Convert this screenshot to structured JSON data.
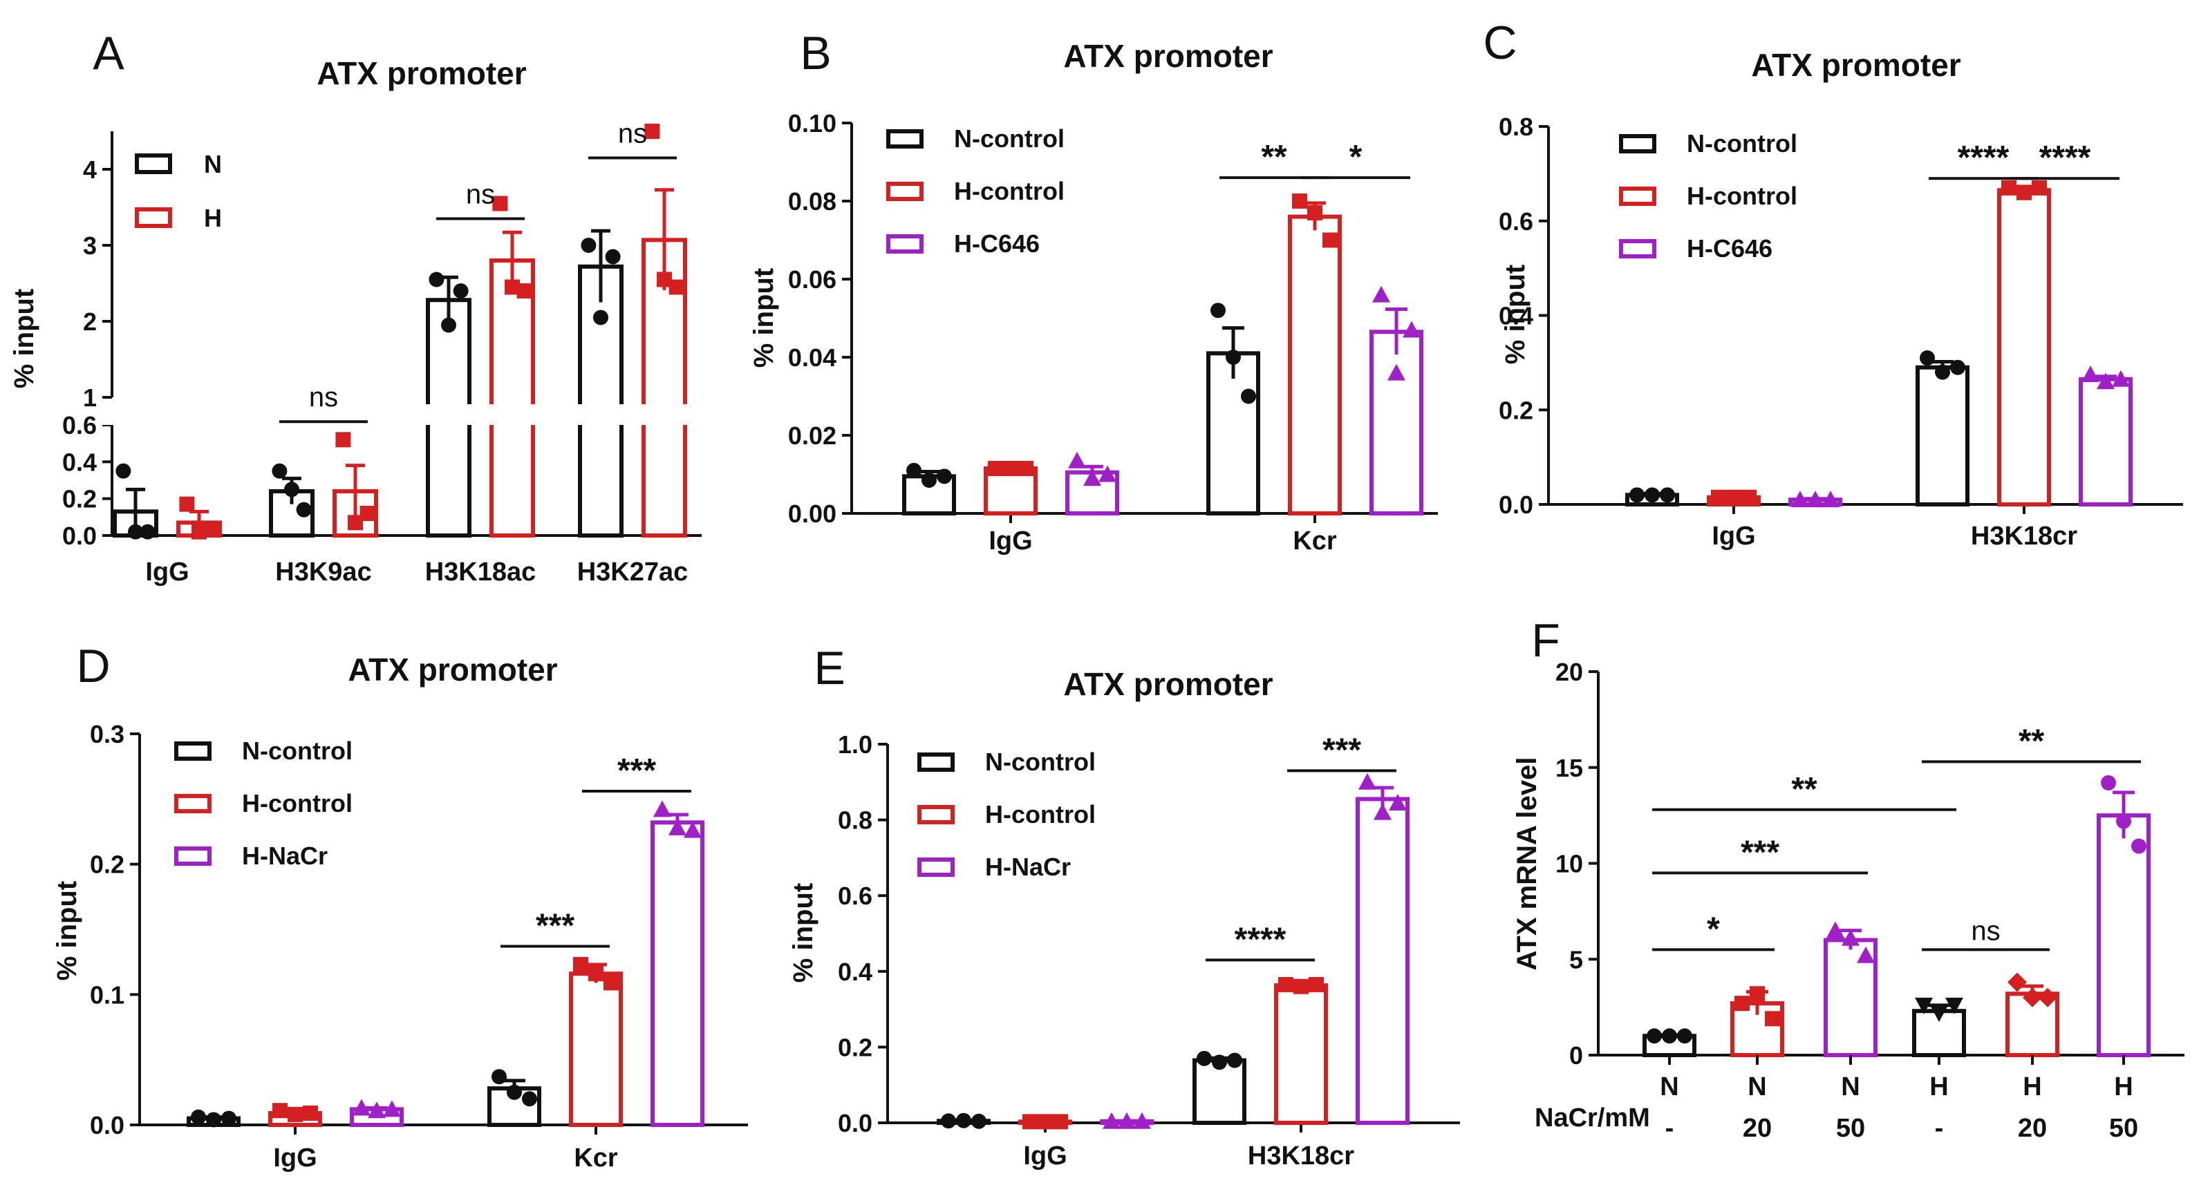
{
  "colors": {
    "N": "#111111",
    "H": "#d42020",
    "purple": "#a020c8"
  },
  "chart_data": [
    {
      "id": "A",
      "panel_label": "A",
      "type": "bar",
      "title": "ATX promoter",
      "ylabel": "% input",
      "y_break": true,
      "ylim_lower": [
        0,
        0.6
      ],
      "ylim_upper": [
        1,
        4.5
      ],
      "yticks_lower": [
        "0.0",
        "0.2",
        "0.4",
        "0.6"
      ],
      "yticks_upper": [
        "1",
        "2",
        "3",
        "4"
      ],
      "categories": [
        "IgG",
        "H3K9ac",
        "H3K18ac",
        "H3K27ac"
      ],
      "series": [
        {
          "name": "N",
          "color_key": "N",
          "marker": "circle",
          "values": [
            0.13,
            0.24,
            2.28,
            2.72
          ],
          "errors": [
            0.12,
            0.07,
            0.3,
            0.47
          ],
          "points": [
            [
              0.35,
              0.02,
              0.02
            ],
            [
              0.35,
              0.25,
              0.14
            ],
            [
              2.55,
              1.95,
              2.4
            ],
            [
              3.0,
              2.05,
              2.85
            ]
          ]
        },
        {
          "name": "H",
          "color_key": "H",
          "marker": "square",
          "values": [
            0.07,
            0.24,
            2.8,
            3.07
          ],
          "errors": [
            0.06,
            0.14,
            0.37,
            0.66
          ],
          "points": [
            [
              0.17,
              0.02,
              0.03
            ],
            [
              0.52,
              0.07,
              0.12
            ],
            [
              3.55,
              2.45,
              2.4
            ],
            [
              4.5,
              2.55,
              2.45
            ]
          ]
        }
      ],
      "legend": [
        {
          "label": "N",
          "color_key": "N"
        },
        {
          "label": "H",
          "color_key": "H"
        }
      ],
      "annotations": [
        {
          "text": "ns",
          "cat": 1,
          "from": 0,
          "to": 1,
          "y": 0.68,
          "style": "ns"
        },
        {
          "text": "ns",
          "cat": 2,
          "from": 0,
          "to": 1,
          "y": 3.35,
          "style": "ns"
        },
        {
          "text": "ns",
          "cat": 3,
          "from": 0,
          "to": 1,
          "y": 4.15,
          "style": "ns"
        }
      ]
    },
    {
      "id": "B",
      "panel_label": "B",
      "type": "bar",
      "title": "ATX promoter",
      "ylabel": "% input",
      "ylim": [
        0,
        0.1
      ],
      "yticks": [
        0,
        0.02,
        0.04,
        0.06,
        0.08,
        0.1
      ],
      "ytick_labels": [
        "0.00",
        "0.02",
        "0.04",
        "0.06",
        "0.08",
        "0.10"
      ],
      "categories": [
        "IgG",
        "Kcr"
      ],
      "series": [
        {
          "name": "N-control",
          "color_key": "N",
          "marker": "circle",
          "values": [
            0.0095,
            0.041
          ],
          "errors": [
            0.0012,
            0.0065
          ],
          "points": [
            [
              0.011,
              0.0085,
              0.0095
            ],
            [
              0.052,
              0.04,
              0.03
            ]
          ]
        },
        {
          "name": "H-control",
          "color_key": "H",
          "marker": "square",
          "values": [
            0.0115,
            0.076
          ],
          "errors": [
            0.0005,
            0.0035
          ],
          "points": [
            [
              0.0115,
              0.0115,
              0.0115
            ],
            [
              0.08,
              0.077,
              0.07
            ]
          ]
        },
        {
          "name": "H-C646",
          "color_key": "purple",
          "marker": "triangle",
          "values": [
            0.0105,
            0.0465
          ],
          "errors": [
            0.0015,
            0.0058
          ],
          "points": [
            [
              0.0135,
              0.009,
              0.01
            ],
            [
              0.056,
              0.036,
              0.047
            ]
          ]
        }
      ],
      "legend": [
        {
          "label": "N-control",
          "color_key": "N"
        },
        {
          "label": "H-control",
          "color_key": "H"
        },
        {
          "label": "H-C646",
          "color_key": "purple"
        }
      ],
      "annotations": [
        {
          "text": "**",
          "cat": 1,
          "from": 0,
          "to": 1,
          "y": 0.086,
          "style": "sig"
        },
        {
          "text": "*",
          "cat": 1,
          "from": 1,
          "to": 2,
          "y": 0.086,
          "style": "sig"
        }
      ]
    },
    {
      "id": "C",
      "panel_label": "C",
      "type": "bar",
      "title": "ATX promoter",
      "ylabel": "% input",
      "ylim": [
        0,
        0.8
      ],
      "yticks": [
        0,
        0.2,
        0.4,
        0.6,
        0.8
      ],
      "ytick_labels": [
        "0.0",
        "0.2",
        "0.4",
        "0.6",
        "0.8"
      ],
      "categories": [
        "IgG",
        "H3K18cr"
      ],
      "series": [
        {
          "name": "N-control",
          "color_key": "N",
          "marker": "circle",
          "values": [
            0.02,
            0.29
          ],
          "errors": [
            0.003,
            0.012
          ],
          "points": [
            [
              0.02,
              0.02,
              0.02
            ],
            [
              0.31,
              0.28,
              0.29
            ]
          ]
        },
        {
          "name": "H-control",
          "color_key": "H",
          "marker": "square",
          "values": [
            0.015,
            0.665
          ],
          "errors": [
            0.002,
            0.008
          ],
          "points": [
            [
              0.015,
              0.015,
              0.015
            ],
            [
              0.67,
              0.66,
              0.67
            ]
          ]
        },
        {
          "name": "H-C646",
          "color_key": "purple",
          "marker": "triangle",
          "values": [
            0.01,
            0.265
          ],
          "errors": [
            0.002,
            0.006
          ],
          "points": [
            [
              0.01,
              0.01,
              0.01
            ],
            [
              0.275,
              0.26,
              0.265
            ]
          ]
        }
      ],
      "legend": [
        {
          "label": "N-control",
          "color_key": "N"
        },
        {
          "label": "H-control",
          "color_key": "H"
        },
        {
          "label": "H-C646",
          "color_key": "purple"
        }
      ],
      "annotations": [
        {
          "text": "****",
          "cat": 1,
          "from": 0,
          "to": 1,
          "y": 0.69,
          "style": "sig"
        },
        {
          "text": "****",
          "cat": 1,
          "from": 1,
          "to": 2,
          "y": 0.69,
          "style": "sig"
        }
      ]
    },
    {
      "id": "D",
      "panel_label": "D",
      "type": "bar",
      "title": "ATX promoter",
      "ylabel": "% input",
      "ylim": [
        0,
        0.3
      ],
      "yticks": [
        0,
        0.1,
        0.2,
        0.3
      ],
      "ytick_labels": [
        "0.0",
        "0.1",
        "0.2",
        "0.3"
      ],
      "categories": [
        "IgG",
        "Kcr"
      ],
      "series": [
        {
          "name": "N-control",
          "color_key": "N",
          "marker": "circle",
          "values": [
            0.005,
            0.028
          ],
          "errors": [
            0.001,
            0.006
          ],
          "points": [
            [
              0.006,
              0.004,
              0.005
            ],
            [
              0.037,
              0.025,
              0.02
            ]
          ]
        },
        {
          "name": "H-control",
          "color_key": "H",
          "marker": "square",
          "values": [
            0.009,
            0.116
          ],
          "errors": [
            0.002,
            0.007
          ],
          "points": [
            [
              0.011,
              0.008,
              0.009
            ],
            [
              0.123,
              0.116,
              0.109
            ]
          ]
        },
        {
          "name": "H-NaCr",
          "color_key": "purple",
          "marker": "triangle",
          "values": [
            0.012,
            0.232
          ],
          "errors": [
            0.001,
            0.006
          ],
          "points": [
            [
              0.013,
              0.011,
              0.012
            ],
            [
              0.242,
              0.228,
              0.226
            ]
          ]
        }
      ],
      "legend": [
        {
          "label": "N-control",
          "color_key": "N"
        },
        {
          "label": "H-control",
          "color_key": "H"
        },
        {
          "label": "H-NaCr",
          "color_key": "purple"
        }
      ],
      "annotations": [
        {
          "text": "***",
          "cat": 1,
          "from": 0,
          "to": 1,
          "y": 0.137,
          "style": "sig"
        },
        {
          "text": "***",
          "cat": 1,
          "from": 1,
          "to": 2,
          "y": 0.256,
          "style": "sig"
        }
      ]
    },
    {
      "id": "E",
      "panel_label": "E",
      "type": "bar",
      "title": "ATX promoter",
      "ylabel": "% input",
      "ylim": [
        0,
        1.0
      ],
      "yticks": [
        0,
        0.2,
        0.4,
        0.6,
        0.8,
        1.0
      ],
      "ytick_labels": [
        "0.0",
        "0.2",
        "0.4",
        "0.6",
        "0.8",
        "1.0"
      ],
      "categories": [
        "IgG",
        "H3K18cr"
      ],
      "series": [
        {
          "name": "N-control",
          "color_key": "N",
          "marker": "circle",
          "values": [
            0.005,
            0.165
          ],
          "errors": [
            0.002,
            0.006
          ],
          "points": [
            [
              0.005,
              0.006,
              0.004
            ],
            [
              0.17,
              0.16,
              0.165
            ]
          ]
        },
        {
          "name": "H-control",
          "color_key": "H",
          "marker": "square",
          "values": [
            0.003,
            0.363
          ],
          "errors": [
            0.001,
            0.004
          ],
          "points": [
            [
              0.003,
              0.003,
              0.003
            ],
            [
              0.365,
              0.36,
              0.365
            ]
          ]
        },
        {
          "name": "H-NaCr",
          "color_key": "purple",
          "marker": "triangle",
          "values": [
            0.004,
            0.855
          ],
          "errors": [
            0.001,
            0.03
          ],
          "points": [
            [
              0.004,
              0.004,
              0.004
            ],
            [
              0.9,
              0.82,
              0.845
            ]
          ]
        }
      ],
      "legend": [
        {
          "label": "N-control",
          "color_key": "N"
        },
        {
          "label": "H-control",
          "color_key": "H"
        },
        {
          "label": "H-NaCr",
          "color_key": "purple"
        }
      ],
      "annotations": [
        {
          "text": "****",
          "cat": 1,
          "from": 0,
          "to": 1,
          "y": 0.43,
          "style": "sig"
        },
        {
          "text": "***",
          "cat": 1,
          "from": 1,
          "to": 2,
          "y": 0.93,
          "style": "sig"
        }
      ]
    },
    {
      "id": "F",
      "panel_label": "F",
      "type": "bar",
      "title": "",
      "ylabel": "ATX mRNA level",
      "ylim": [
        0,
        20
      ],
      "yticks": [
        0,
        5,
        10,
        15,
        20
      ],
      "ytick_labels": [
        "0",
        "5",
        "10",
        "15",
        "20"
      ],
      "row1_label": "",
      "row2_label": "NaCr/mM",
      "categories": [
        "N",
        "N",
        "N",
        "H",
        "H",
        "H"
      ],
      "categories_row2": [
        "-",
        "20",
        "50",
        "-",
        "20",
        "50"
      ],
      "values": [
        1.0,
        2.7,
        6.0,
        2.3,
        3.2,
        12.5
      ],
      "errors": [
        0.05,
        0.6,
        0.5,
        0.3,
        0.4,
        1.2
      ],
      "color_keys": [
        "N",
        "H",
        "purple",
        "N",
        "H",
        "purple"
      ],
      "markers": [
        "circle",
        "square",
        "triangle",
        "triangledown",
        "diamond",
        "circle"
      ],
      "points": [
        [
          1.0,
          1.0,
          1.0
        ],
        [
          2.7,
          3.2,
          1.9
        ],
        [
          6.5,
          6.1,
          5.2
        ],
        [
          2.6,
          2.2,
          2.6
        ],
        [
          3.8,
          3.0,
          3.0
        ],
        [
          14.2,
          12.2,
          10.9
        ]
      ],
      "annotations": [
        {
          "text": "*",
          "from": 0,
          "to": 1,
          "y": 5.5,
          "style": "sig"
        },
        {
          "text": "***",
          "from": 0,
          "to": 2,
          "y": 9.5,
          "style": "sig"
        },
        {
          "text": "**",
          "from": 0,
          "to": 3,
          "y": 12.8,
          "style": "sig"
        },
        {
          "text": "ns",
          "from": 3,
          "to": 4,
          "y": 5.5,
          "style": "ns"
        },
        {
          "text": "**",
          "from": 3,
          "to": 5,
          "y": 15.3,
          "style": "sig"
        }
      ]
    }
  ]
}
